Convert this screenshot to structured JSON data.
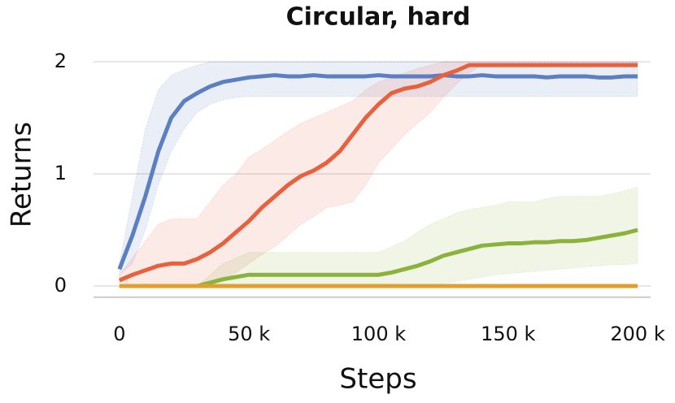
{
  "chart_data": {
    "type": "line",
    "title": "Circular, hard",
    "x_label": "Steps",
    "y_label": "Returns",
    "x": [
      0,
      5000,
      10000,
      15000,
      20000,
      25000,
      30000,
      35000,
      40000,
      45000,
      50000,
      55000,
      60000,
      65000,
      70000,
      75000,
      80000,
      85000,
      90000,
      95000,
      100000,
      105000,
      110000,
      115000,
      120000,
      125000,
      130000,
      135000,
      140000,
      145000,
      150000,
      155000,
      160000,
      165000,
      170000,
      175000,
      180000,
      185000,
      190000,
      195000,
      200000
    ],
    "xlim": [
      -10000,
      205000
    ],
    "xticks": [
      0,
      {
        "value": 50000,
        "label": "50 k"
      },
      {
        "value": 100000,
        "label": "100 k"
      },
      {
        "value": 150000,
        "label": "150 k"
      },
      {
        "value": 200000,
        "label": "200 k"
      }
    ],
    "ylim": [
      -0.1,
      2.05
    ],
    "yticks": [
      0,
      1,
      2
    ],
    "grid": true,
    "series": [
      {
        "color": "#5b7fc1",
        "values": [
          0.15,
          0.45,
          0.8,
          1.2,
          1.5,
          1.65,
          1.72,
          1.78,
          1.82,
          1.84,
          1.86,
          1.87,
          1.88,
          1.87,
          1.87,
          1.88,
          1.87,
          1.87,
          1.87,
          1.87,
          1.88,
          1.87,
          1.87,
          1.87,
          1.87,
          1.88,
          1.87,
          1.87,
          1.88,
          1.87,
          1.87,
          1.87,
          1.87,
          1.86,
          1.87,
          1.87,
          1.87,
          1.86,
          1.86,
          1.87,
          1.87
        ],
        "lower": [
          0.1,
          0.2,
          0.5,
          0.9,
          1.2,
          1.4,
          1.55,
          1.62,
          1.66,
          1.68,
          1.69,
          1.69,
          1.69,
          1.69,
          1.69,
          1.69,
          1.69,
          1.69,
          1.69,
          1.69,
          1.69,
          1.69,
          1.69,
          1.69,
          1.69,
          1.69,
          1.69,
          1.69,
          1.69,
          1.69,
          1.69,
          1.69,
          1.69,
          1.69,
          1.69,
          1.69,
          1.69,
          1.69,
          1.69,
          1.69,
          1.69
        ],
        "upper": [
          0.2,
          0.8,
          1.4,
          1.75,
          1.88,
          1.93,
          1.97,
          2,
          2,
          2,
          2,
          2,
          2,
          2,
          2,
          2,
          2,
          2,
          2,
          2,
          2,
          2,
          2,
          2,
          2,
          2,
          2,
          2,
          2,
          2,
          2,
          2,
          2,
          2,
          2,
          2,
          2,
          2,
          2,
          2,
          2
        ]
      },
      {
        "color": "#e8603c",
        "values": [
          0.05,
          0.1,
          0.14,
          0.18,
          0.2,
          0.2,
          0.24,
          0.3,
          0.38,
          0.48,
          0.58,
          0.7,
          0.8,
          0.9,
          0.98,
          1.03,
          1.1,
          1.2,
          1.35,
          1.5,
          1.62,
          1.72,
          1.76,
          1.78,
          1.82,
          1.88,
          1.92,
          1.97,
          1.97,
          1.97,
          1.97,
          1.97,
          1.97,
          1.97,
          1.97,
          1.97,
          1.97,
          1.97,
          1.97,
          1.97,
          1.97
        ],
        "lower": [
          0,
          0,
          0.02,
          0.01,
          0,
          0,
          0,
          0.02,
          0.05,
          0.12,
          0.2,
          0.28,
          0.35,
          0.45,
          0.55,
          0.62,
          0.7,
          0.72,
          0.75,
          0.9,
          1.1,
          1.22,
          1.35,
          1.45,
          1.55,
          1.68,
          1.8,
          1.9,
          1.97,
          1.97,
          1.97,
          1.97,
          1.97,
          1.97,
          1.97,
          1.97,
          1.97,
          1.97,
          1.97,
          1.97,
          1.97
        ],
        "upper": [
          0.1,
          0.25,
          0.4,
          0.55,
          0.6,
          0.6,
          0.6,
          0.75,
          0.9,
          1.0,
          1.15,
          1.22,
          1.3,
          1.38,
          1.45,
          1.5,
          1.55,
          1.6,
          1.65,
          1.75,
          1.82,
          1.86,
          1.9,
          1.94,
          1.97,
          2,
          2,
          2,
          2,
          2,
          2,
          2,
          2,
          2,
          2,
          2,
          2,
          2,
          2,
          2,
          2
        ]
      },
      {
        "color": "#8bb23b",
        "values": [
          0,
          0,
          0,
          0,
          0,
          0,
          0,
          0.03,
          0.06,
          0.08,
          0.1,
          0.1,
          0.1,
          0.1,
          0.1,
          0.1,
          0.1,
          0.1,
          0.1,
          0.1,
          0.1,
          0.12,
          0.15,
          0.18,
          0.22,
          0.27,
          0.3,
          0.33,
          0.36,
          0.37,
          0.38,
          0.38,
          0.39,
          0.39,
          0.4,
          0.4,
          0.41,
          0.43,
          0.45,
          0.47,
          0.5
        ],
        "lower": [
          0,
          0,
          0,
          0,
          0,
          0,
          0,
          0,
          0,
          0,
          0,
          0,
          0,
          0,
          0,
          0,
          0,
          0,
          0,
          0,
          0,
          0,
          0,
          0,
          0,
          0.02,
          0.04,
          0.06,
          0.08,
          0.1,
          0.11,
          0.12,
          0.13,
          0.14,
          0.15,
          0.16,
          0.17,
          0.18,
          0.19,
          0.19,
          0.2
        ],
        "upper": [
          0,
          0,
          0,
          0,
          0,
          0,
          0,
          0.1,
          0.2,
          0.25,
          0.3,
          0.3,
          0.3,
          0.3,
          0.3,
          0.3,
          0.3,
          0.3,
          0.3,
          0.3,
          0.3,
          0.35,
          0.4,
          0.48,
          0.55,
          0.6,
          0.65,
          0.68,
          0.7,
          0.72,
          0.75,
          0.75,
          0.75,
          0.78,
          0.8,
          0.8,
          0.8,
          0.8,
          0.82,
          0.85,
          0.88
        ]
      },
      {
        "color": "#e0a030",
        "values": [
          0,
          0,
          0,
          0,
          0,
          0,
          0,
          0,
          0,
          0,
          0,
          0,
          0,
          0,
          0,
          0,
          0,
          0,
          0,
          0,
          0,
          0,
          0,
          0,
          0,
          0,
          0,
          0,
          0,
          0,
          0,
          0,
          0,
          0,
          0,
          0,
          0,
          0,
          0,
          0,
          0
        ]
      }
    ]
  }
}
